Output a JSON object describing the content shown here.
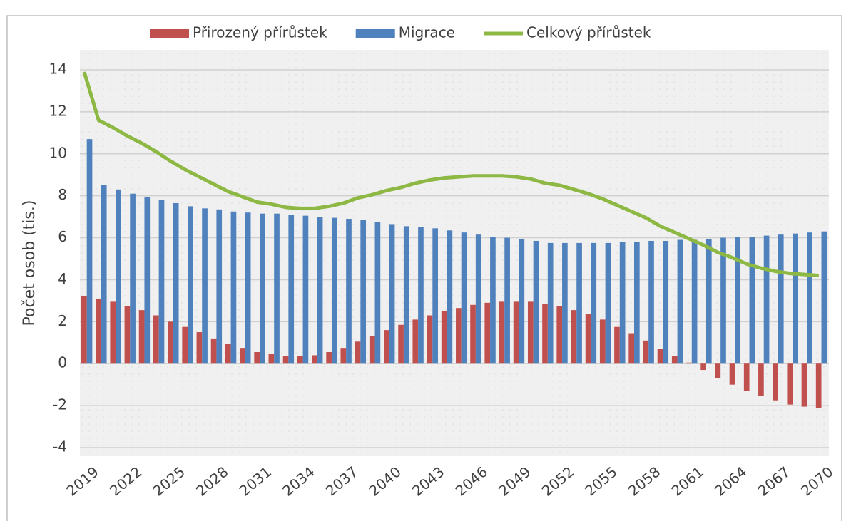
{
  "chart_data": {
    "type": "bar",
    "y_label": "Počet osob (tis.)",
    "categories": [
      "2019",
      null,
      null,
      "2022",
      null,
      null,
      "2025",
      null,
      null,
      "2028",
      null,
      null,
      "2031",
      null,
      null,
      "2034",
      null,
      null,
      "2037",
      null,
      null,
      "2040",
      null,
      null,
      "2043",
      null,
      null,
      "2046",
      null,
      null,
      "2049",
      null,
      null,
      "2052",
      null,
      null,
      "2055",
      null,
      null,
      "2058",
      null,
      null,
      "2061",
      null,
      null,
      "2064",
      null,
      null,
      "2067",
      null,
      null,
      "2070"
    ],
    "series": [
      {
        "name": "Přirozený přírůstek",
        "type": "bar",
        "color": "#c0504d",
        "values": [
          3.2,
          3.1,
          2.95,
          2.75,
          2.55,
          2.3,
          2.0,
          1.75,
          1.5,
          1.2,
          0.95,
          0.75,
          0.55,
          0.45,
          0.35,
          0.35,
          0.4,
          0.55,
          0.75,
          1.05,
          1.3,
          1.6,
          1.85,
          2.1,
          2.3,
          2.5,
          2.65,
          2.8,
          2.9,
          2.95,
          2.95,
          2.95,
          2.85,
          2.75,
          2.55,
          2.35,
          2.1,
          1.75,
          1.45,
          1.1,
          0.7,
          0.35,
          0.05,
          -0.3,
          -0.7,
          -1.0,
          -1.3,
          -1.55,
          -1.75,
          -1.95,
          -2.05,
          -2.1
        ]
      },
      {
        "name": "Migrace",
        "type": "bar",
        "color": "#4f81bd",
        "values": [
          10.7,
          8.5,
          8.3,
          8.1,
          7.95,
          7.8,
          7.65,
          7.5,
          7.4,
          7.35,
          7.25,
          7.2,
          7.15,
          7.15,
          7.1,
          7.05,
          7.0,
          6.95,
          6.9,
          6.85,
          6.75,
          6.65,
          6.55,
          6.5,
          6.45,
          6.35,
          6.25,
          6.15,
          6.05,
          6.0,
          5.95,
          5.85,
          5.75,
          5.75,
          5.75,
          5.75,
          5.75,
          5.8,
          5.8,
          5.85,
          5.85,
          5.9,
          5.9,
          5.95,
          6.0,
          6.05,
          6.05,
          6.1,
          6.15,
          6.2,
          6.25,
          6.3
        ]
      },
      {
        "name": "Celkový přírůstek",
        "type": "line",
        "color": "#8db843",
        "values": [
          13.9,
          11.6,
          11.25,
          10.85,
          10.5,
          10.1,
          9.65,
          9.25,
          8.9,
          8.55,
          8.2,
          7.95,
          7.7,
          7.6,
          7.45,
          7.4,
          7.4,
          7.5,
          7.65,
          7.9,
          8.05,
          8.25,
          8.4,
          8.6,
          8.75,
          8.85,
          8.9,
          8.95,
          8.95,
          8.95,
          8.9,
          8.8,
          8.6,
          8.5,
          8.3,
          8.1,
          7.85,
          7.55,
          7.25,
          6.95,
          6.55,
          6.25,
          5.95,
          5.65,
          5.3,
          5.05,
          4.75,
          4.55,
          4.4,
          4.3,
          4.25,
          4.2
        ]
      }
    ],
    "ylim": [
      -4,
      14
    ],
    "yticks": [
      {
        "value": -4,
        "label": "-4"
      },
      {
        "value": -2,
        "label": "-2"
      },
      0,
      2,
      4,
      6,
      8,
      10,
      12,
      14
    ],
    "grid": true,
    "legend": "top"
  }
}
